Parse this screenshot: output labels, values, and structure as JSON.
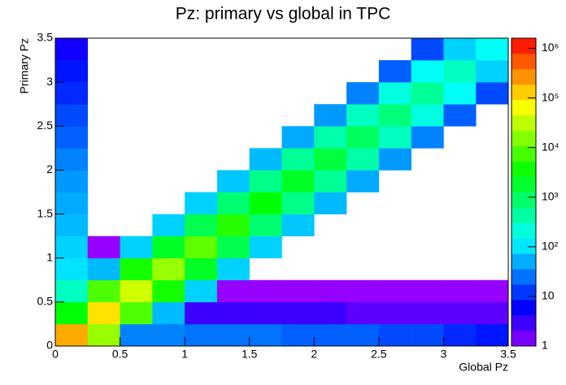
{
  "chart_data": {
    "type": "hist2d",
    "title": "Pz: primary vs global in TPC",
    "x_label": "Global Pz",
    "y_label": "Primary Pz",
    "xlim": [
      0,
      3.5
    ],
    "ylim": [
      0,
      3.5
    ],
    "xticks": [
      0,
      0.5,
      1,
      1.5,
      2,
      2.5,
      3,
      3.5
    ],
    "yticks": [
      0,
      0.5,
      1,
      1.5,
      2,
      2.5,
      3,
      3.5
    ],
    "x_bins": [
      0,
      0.25,
      0.5,
      0.75,
      1,
      1.25,
      1.5,
      1.75,
      2,
      2.25,
      2.5,
      2.75,
      3,
      3.25,
      3.5
    ],
    "y_bins": [
      0,
      0.25,
      0.5,
      0.75,
      1,
      1.25,
      1.5,
      1.75,
      2,
      2.25,
      2.5,
      2.75,
      3,
      3.25,
      3.5
    ],
    "z": [
      [
        200000,
        20000,
        30,
        30,
        25,
        25,
        25,
        20,
        20,
        20,
        15,
        15,
        10,
        8
      ],
      [
        3000,
        100000,
        8000,
        60,
        3,
        3,
        3,
        3,
        3,
        2,
        2,
        2,
        2,
        2
      ],
      [
        300,
        8000,
        40000,
        4000,
        80,
        1,
        1,
        1,
        1,
        1,
        1,
        1,
        1,
        1
      ],
      [
        100,
        60,
        4000,
        20000,
        2000,
        80,
        0,
        0,
        0,
        0,
        0,
        0,
        0,
        0
      ],
      [
        80,
        1,
        80,
        2000,
        10000,
        1200,
        80,
        0,
        0,
        0,
        0,
        0,
        0,
        0
      ],
      [
        60,
        0,
        0,
        80,
        1200,
        5000,
        800,
        70,
        0,
        0,
        0,
        0,
        0,
        0
      ],
      [
        50,
        0,
        0,
        0,
        80,
        800,
        3000,
        600,
        60,
        0,
        0,
        0,
        0,
        0
      ],
      [
        40,
        0,
        0,
        0,
        0,
        70,
        600,
        2000,
        500,
        50,
        0,
        0,
        0,
        0
      ],
      [
        30,
        0,
        0,
        0,
        0,
        0,
        60,
        500,
        1500,
        400,
        40,
        0,
        0,
        0
      ],
      [
        20,
        0,
        0,
        0,
        0,
        0,
        0,
        50,
        400,
        1000,
        300,
        30,
        0,
        0
      ],
      [
        15,
        0,
        0,
        0,
        0,
        0,
        0,
        0,
        40,
        300,
        700,
        200,
        20,
        0
      ],
      [
        10,
        0,
        0,
        0,
        0,
        0,
        0,
        0,
        0,
        30,
        200,
        500,
        150,
        15
      ],
      [
        8,
        0,
        0,
        0,
        0,
        0,
        0,
        0,
        0,
        0,
        20,
        150,
        300,
        80
      ],
      [
        5,
        0,
        0,
        0,
        0,
        0,
        0,
        0,
        0,
        0,
        0,
        15,
        80,
        150
      ]
    ],
    "zlim": [
      1,
      1600000
    ],
    "z_log": true,
    "zticks": [
      1,
      10,
      {
        "value": 100,
        "label": "10²"
      },
      {
        "value": 1000,
        "label": "10³"
      },
      {
        "value": 10000,
        "label": "10⁴"
      },
      {
        "value": 100000,
        "label": "10⁵"
      },
      {
        "value": 1000000,
        "label": "10⁶"
      }
    ]
  }
}
